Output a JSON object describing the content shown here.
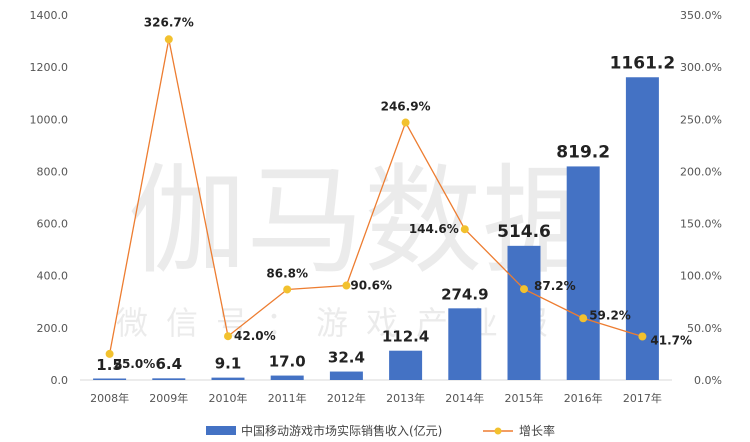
{
  "chart_data": {
    "type": "bar",
    "categories": [
      "2008年",
      "2009年",
      "2010年",
      "2011年",
      "2012年",
      "2013年",
      "2014年",
      "2015年",
      "2016年",
      "2017年"
    ],
    "series": [
      {
        "name": "中国移动游戏市场实际销售收入(亿元)",
        "type": "bar",
        "axis": "left",
        "color": "#4472C4",
        "values": [
          1.5,
          6.4,
          9.1,
          17.0,
          32.4,
          112.4,
          274.9,
          514.6,
          819.2,
          1161.2
        ],
        "labels": [
          "1.5",
          "6.4",
          "9.1",
          "17.0",
          "32.4",
          "112.4",
          "274.9",
          "514.6",
          "819.2",
          "1161.2"
        ]
      },
      {
        "name": "增长率",
        "type": "line",
        "axis": "right",
        "color": "#ED7D31",
        "marker_color": "#F2C12E",
        "values": [
          25.0,
          326.7,
          42.0,
          86.8,
          90.6,
          246.9,
          144.6,
          87.2,
          59.2,
          41.7
        ],
        "labels": [
          "25.0%",
          "326.7%",
          "42.0%",
          "86.8%",
          "90.6%",
          "246.9%",
          "144.6%",
          "87.2%",
          "59.2%",
          "41.7%"
        ]
      }
    ],
    "y_left": {
      "range": [
        0,
        1400
      ],
      "ticks": [
        "0.0",
        "200.0",
        "400.0",
        "600.0",
        "800.0",
        "1000.0",
        "1200.0",
        "1400.0"
      ]
    },
    "y_right": {
      "range": [
        0,
        350
      ],
      "ticks": [
        "0.0%",
        "50.0%",
        "100.0%",
        "150.0%",
        "200.0%",
        "250.0%",
        "300.0%",
        "350.0%"
      ]
    },
    "legend": {
      "position": "bottom",
      "items": [
        "中国移动游戏市场实际销售收入(亿元)",
        "增长率"
      ]
    },
    "grid": false,
    "watermark": {
      "main": "伽马数据",
      "sub": "微信号：游戏产业报告"
    }
  }
}
